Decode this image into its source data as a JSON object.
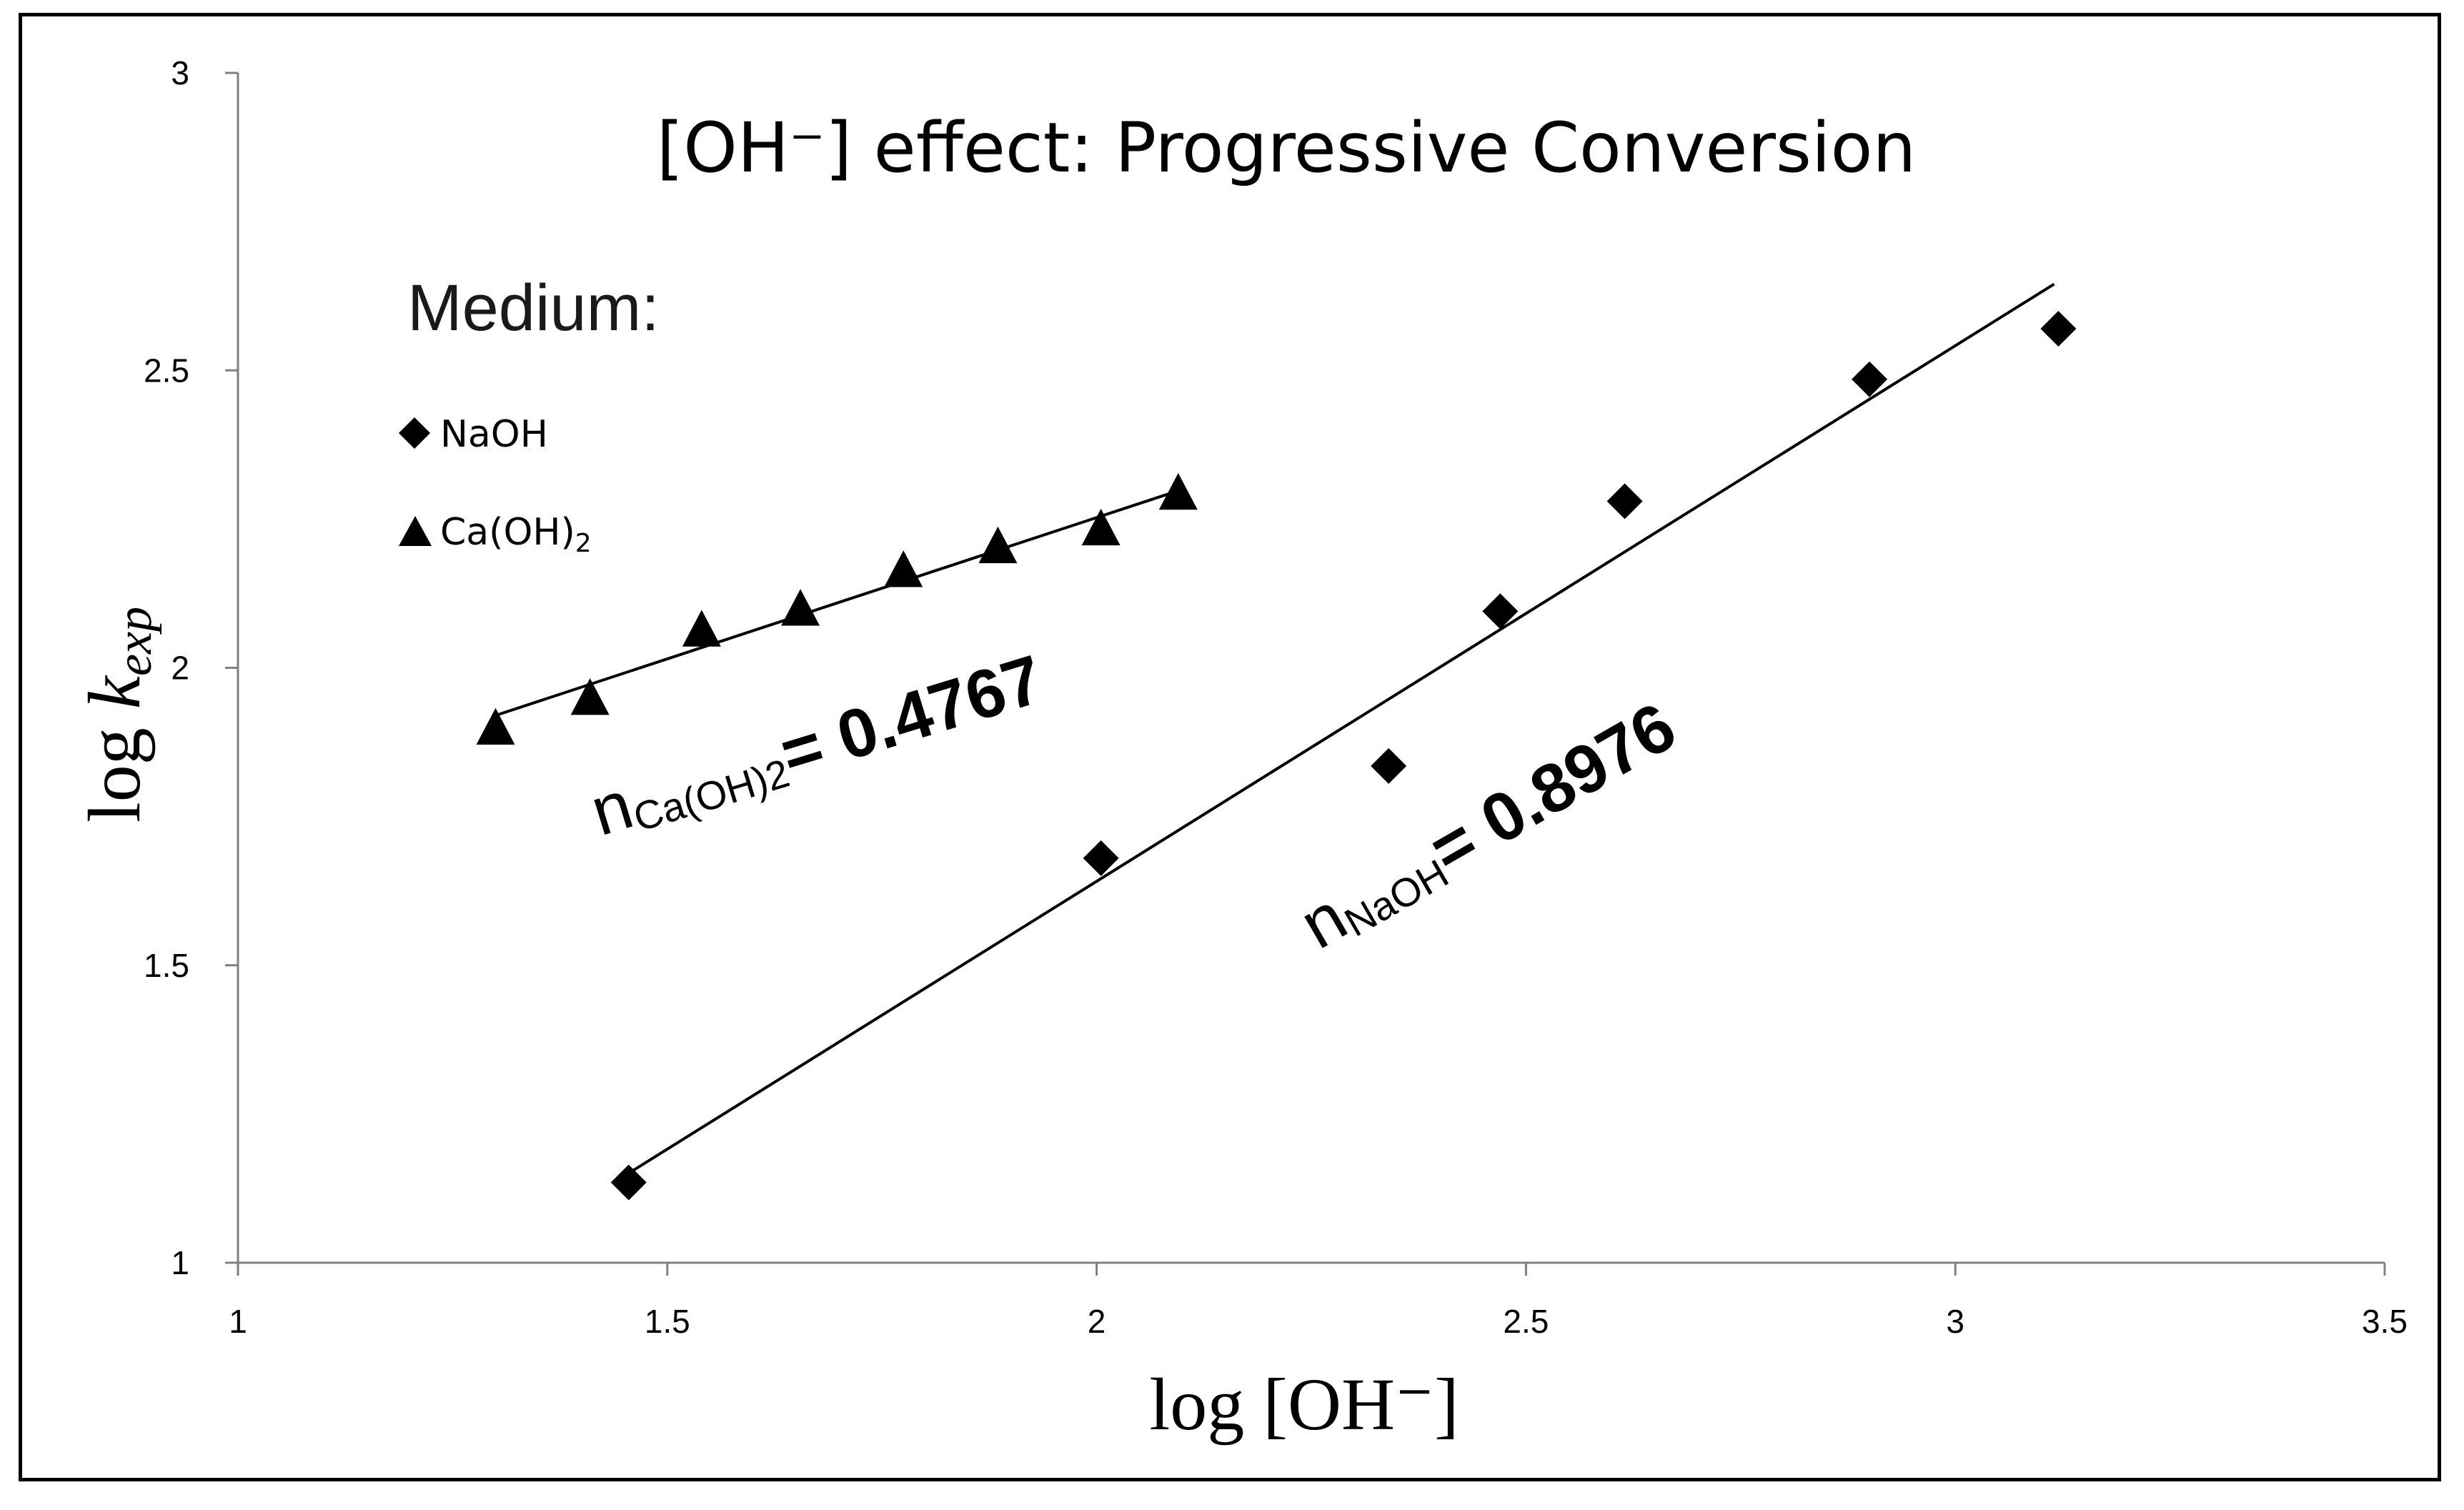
{
  "chart_data": {
    "type": "scatter",
    "title": "[OH⁻] effect: Progressive Conversion",
    "xlabel": "log [OH⁻]",
    "ylabel_main": "log ",
    "ylabel_k": "k",
    "ylabel_sub": "exp",
    "xlim": [
      1,
      3.5
    ],
    "ylim": [
      1,
      3
    ],
    "xticks": [
      "1",
      "1.5",
      "2",
      "2.5",
      "3",
      "3.5"
    ],
    "yticks": [
      "1",
      "1.5",
      "2",
      "2.5",
      "3"
    ],
    "legend_title": "Medium:",
    "series": [
      {
        "name": "NaOH",
        "marker": "diamond",
        "x": [
          1.455,
          2.005,
          2.34,
          2.47,
          2.615,
          2.9,
          3.12
        ],
        "y": [
          1.135,
          1.68,
          1.835,
          2.095,
          2.28,
          2.485,
          2.57
        ],
        "fit": {
          "x": [
            1.46,
            3.115
          ],
          "y": [
            1.155,
            2.645
          ]
        },
        "annotation": {
          "n": "n",
          "sub": "NaOH",
          "value": "= 0.8976"
        }
      },
      {
        "name": "Ca(OH)",
        "name_sub": "2",
        "marker": "triangle",
        "x": [
          1.3,
          1.41,
          1.54,
          1.655,
          1.775,
          1.885,
          2.005,
          2.095
        ],
        "y": [
          1.9,
          1.95,
          2.065,
          2.1,
          2.165,
          2.205,
          2.235,
          2.295
        ],
        "fit": {
          "x": [
            1.3,
            2.1
          ],
          "y": [
            1.92,
            2.3
          ]
        },
        "annotation": {
          "n": "n",
          "sub": "Ca(OH)2",
          "value": "= 0.4767"
        }
      }
    ]
  }
}
